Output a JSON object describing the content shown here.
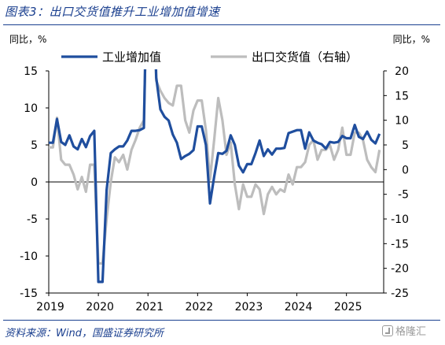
{
  "header": {
    "title": "图表3：出口交货值推升工业增加值增速"
  },
  "footer": {
    "source": "资料来源：Wind，国盛证券研究所",
    "watermark": "格隆汇"
  },
  "chart_data": {
    "type": "line",
    "left_axis_label": "同比，%",
    "right_axis_label": "同比，%",
    "ylim_left": [
      -15,
      15
    ],
    "ylim_right": [
      -25,
      20
    ],
    "yticks_left": [
      -15,
      -10,
      -5,
      0,
      5,
      10,
      15
    ],
    "yticks_right": [
      -25,
      -20,
      -15,
      -10,
      -5,
      0,
      5,
      10,
      15,
      20
    ],
    "x_ticks": [
      "2019",
      "2020",
      "2021",
      "2022",
      "2023",
      "2024",
      "2025"
    ],
    "x_start": "2019-01",
    "legend_position": "top",
    "series": [
      {
        "name": "工业增加值",
        "axis": "left",
        "color": "#1f4e9e",
        "width": 3.2,
        "points": [
          [
            "2019-01",
            5.3
          ],
          [
            "2019-02",
            5.3
          ],
          [
            "2019-03",
            8.5
          ],
          [
            "2019-04",
            5.4
          ],
          [
            "2019-05",
            5.0
          ],
          [
            "2019-06",
            6.3
          ],
          [
            "2019-07",
            4.8
          ],
          [
            "2019-08",
            4.4
          ],
          [
            "2019-09",
            5.8
          ],
          [
            "2019-10",
            4.7
          ],
          [
            "2019-11",
            6.2
          ],
          [
            "2019-12",
            6.9
          ],
          [
            "2020-01",
            -13.5
          ],
          [
            "2020-02",
            -13.5
          ],
          [
            "2020-03",
            -1.1
          ],
          [
            "2020-04",
            3.9
          ],
          [
            "2020-05",
            4.4
          ],
          [
            "2020-06",
            4.8
          ],
          [
            "2020-07",
            4.8
          ],
          [
            "2020-08",
            5.6
          ],
          [
            "2020-09",
            6.9
          ],
          [
            "2020-10",
            6.9
          ],
          [
            "2020-11",
            7.0
          ],
          [
            "2020-12",
            7.3
          ],
          [
            "2021-01",
            35.1
          ],
          [
            "2021-02",
            35.1
          ],
          [
            "2021-03",
            14.1
          ],
          [
            "2021-04",
            9.8
          ],
          [
            "2021-05",
            8.8
          ],
          [
            "2021-06",
            8.3
          ],
          [
            "2021-07",
            6.4
          ],
          [
            "2021-08",
            5.3
          ],
          [
            "2021-09",
            3.1
          ],
          [
            "2021-10",
            3.5
          ],
          [
            "2021-11",
            3.8
          ],
          [
            "2021-12",
            4.3
          ],
          [
            "2022-01",
            7.5
          ],
          [
            "2022-02",
            7.5
          ],
          [
            "2022-03",
            5.0
          ],
          [
            "2022-04",
            -2.9
          ],
          [
            "2022-05",
            0.7
          ],
          [
            "2022-06",
            3.9
          ],
          [
            "2022-07",
            3.8
          ],
          [
            "2022-08",
            4.2
          ],
          [
            "2022-09",
            6.3
          ],
          [
            "2022-10",
            5.0
          ],
          [
            "2022-11",
            2.2
          ],
          [
            "2022-12",
            1.3
          ],
          [
            "2023-01",
            2.4
          ],
          [
            "2023-02",
            2.4
          ],
          [
            "2023-03",
            3.9
          ],
          [
            "2023-04",
            5.6
          ],
          [
            "2023-05",
            3.5
          ],
          [
            "2023-06",
            4.4
          ],
          [
            "2023-07",
            3.7
          ],
          [
            "2023-08",
            4.5
          ],
          [
            "2023-09",
            4.5
          ],
          [
            "2023-10",
            4.6
          ],
          [
            "2023-11",
            6.6
          ],
          [
            "2023-12",
            6.8
          ],
          [
            "2024-01",
            7.0
          ],
          [
            "2024-02",
            7.0
          ],
          [
            "2024-03",
            4.5
          ],
          [
            "2024-04",
            6.7
          ],
          [
            "2024-05",
            5.6
          ],
          [
            "2024-06",
            5.3
          ],
          [
            "2024-07",
            5.1
          ],
          [
            "2024-08",
            4.5
          ],
          [
            "2024-09",
            5.4
          ],
          [
            "2024-10",
            5.3
          ],
          [
            "2024-11",
            5.4
          ],
          [
            "2024-12",
            6.2
          ],
          [
            "2025-01",
            5.9
          ],
          [
            "2025-02",
            5.9
          ],
          [
            "2025-03",
            7.7
          ],
          [
            "2025-04",
            6.1
          ],
          [
            "2025-05",
            5.8
          ],
          [
            "2025-06",
            6.8
          ],
          [
            "2025-07",
            5.7
          ],
          [
            "2025-08",
            5.2
          ],
          [
            "2025-09",
            6.5
          ]
        ]
      },
      {
        "name": "出口交货值（右轴）",
        "axis": "right",
        "color": "#bdbdbd",
        "width": 3.2,
        "points": [
          [
            "2019-01",
            4.5
          ],
          [
            "2019-02",
            4.5
          ],
          [
            "2019-03",
            10.5
          ],
          [
            "2019-04",
            2.0
          ],
          [
            "2019-05",
            1.0
          ],
          [
            "2019-06",
            1.0
          ],
          [
            "2019-07",
            -1.0
          ],
          [
            "2019-08",
            -4.0
          ],
          [
            "2019-09",
            -1.5
          ],
          [
            "2019-10",
            -4.5
          ],
          [
            "2019-11",
            1.0
          ],
          [
            "2019-12",
            1.0
          ],
          [
            "2020-01",
            -19.0
          ],
          [
            "2020-02",
            -19.0
          ],
          [
            "2020-03",
            -10.0
          ],
          [
            "2020-04",
            -2.5
          ],
          [
            "2020-05",
            2.5
          ],
          [
            "2020-06",
            1.5
          ],
          [
            "2020-07",
            3.0
          ],
          [
            "2020-08",
            0.0
          ],
          [
            "2020-09",
            4.0
          ],
          [
            "2020-10",
            6.0
          ],
          [
            "2020-11",
            8.5
          ],
          [
            "2020-12",
            10.0
          ],
          [
            "2021-01",
            45.0
          ],
          [
            "2021-02",
            45.0
          ],
          [
            "2021-03",
            18.0
          ],
          [
            "2021-04",
            16.0
          ],
          [
            "2021-05",
            14.5
          ],
          [
            "2021-06",
            13.5
          ],
          [
            "2021-07",
            13.0
          ],
          [
            "2021-08",
            17.0
          ],
          [
            "2021-09",
            17.0
          ],
          [
            "2021-10",
            10.0
          ],
          [
            "2021-11",
            7.5
          ],
          [
            "2021-12",
            12.0
          ],
          [
            "2022-01",
            14.0
          ],
          [
            "2022-02",
            14.0
          ],
          [
            "2022-03",
            8.0
          ],
          [
            "2022-04",
            -2.0
          ],
          [
            "2022-05",
            6.0
          ],
          [
            "2022-06",
            14.5
          ],
          [
            "2022-07",
            10.0
          ],
          [
            "2022-08",
            3.0
          ],
          [
            "2022-09",
            5.5
          ],
          [
            "2022-10",
            -3.0
          ],
          [
            "2022-11",
            -8.0
          ],
          [
            "2022-12",
            -3.0
          ],
          [
            "2023-01",
            -5.5
          ],
          [
            "2023-02",
            -5.5
          ],
          [
            "2023-03",
            -3.0
          ],
          [
            "2023-04",
            -4.0
          ],
          [
            "2023-05",
            -9.0
          ],
          [
            "2023-06",
            -5.0
          ],
          [
            "2023-07",
            -3.5
          ],
          [
            "2023-08",
            -5.0
          ],
          [
            "2023-09",
            -4.0
          ],
          [
            "2023-10",
            -4.5
          ],
          [
            "2023-11",
            -1.0
          ],
          [
            "2023-12",
            -3.0
          ],
          [
            "2024-01",
            0.5
          ],
          [
            "2024-02",
            0.5
          ],
          [
            "2024-03",
            1.5
          ],
          [
            "2024-04",
            5.0
          ],
          [
            "2024-05",
            6.0
          ],
          [
            "2024-06",
            2.0
          ],
          [
            "2024-07",
            4.0
          ],
          [
            "2024-08",
            4.0
          ],
          [
            "2024-09",
            5.0
          ],
          [
            "2024-10",
            2.0
          ],
          [
            "2024-11",
            4.0
          ],
          [
            "2024-12",
            8.5
          ],
          [
            "2025-01",
            3.0
          ],
          [
            "2025-02",
            3.0
          ],
          [
            "2025-03",
            7.5
          ],
          [
            "2025-04",
            7.5
          ],
          [
            "2025-05",
            6.0
          ],
          [
            "2025-06",
            2.0
          ],
          [
            "2025-07",
            0.5
          ],
          [
            "2025-08",
            -0.5
          ],
          [
            "2025-09",
            4.0
          ]
        ]
      }
    ]
  }
}
